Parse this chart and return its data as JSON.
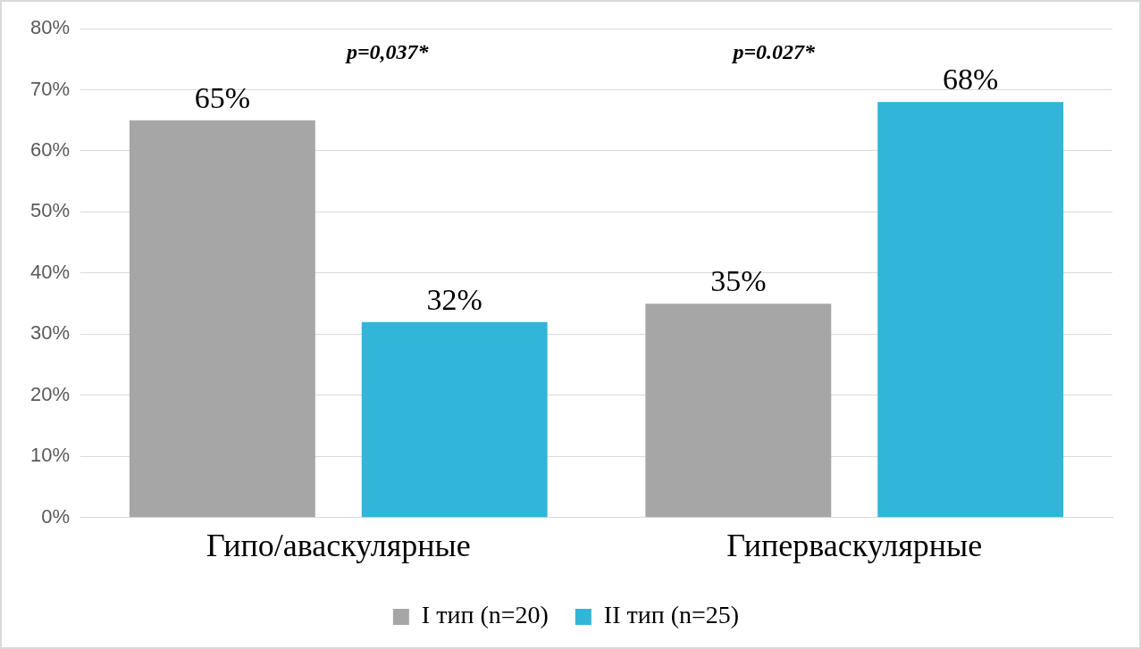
{
  "chart_data": {
    "type": "bar",
    "categories": [
      "Гипо/аваскулярные",
      "Гиперваскулярные"
    ],
    "series": [
      {
        "name": "I тип (n=20)",
        "color": "#a6a6a6",
        "values": [
          65,
          35
        ],
        "value_labels": [
          "65%",
          "35%"
        ]
      },
      {
        "name": "II тип (n=25)",
        "color": "#31b5d8",
        "values": [
          32,
          68
        ],
        "value_labels": [
          "32%",
          "68%"
        ]
      }
    ],
    "ylim": [
      0,
      80
    ],
    "yticks": [
      {
        "value": 0,
        "label": "0%"
      },
      {
        "value": 10,
        "label": "10%"
      },
      {
        "value": 20,
        "label": "20%"
      },
      {
        "value": 30,
        "label": "30%"
      },
      {
        "value": 40,
        "label": "40%"
      },
      {
        "value": 50,
        "label": "50%"
      },
      {
        "value": 60,
        "label": "60%"
      },
      {
        "value": 70,
        "label": "70%"
      },
      {
        "value": 80,
        "label": "80%"
      }
    ],
    "grid": "y",
    "legend": "bottom",
    "annotations": [
      "p=0,037*",
      "p=0.027*"
    ]
  }
}
